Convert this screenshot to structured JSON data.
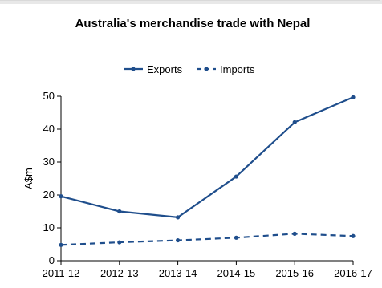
{
  "chart_data": {
    "type": "line",
    "title": "Australia's merchandise trade with Nepal",
    "ylabel": "A$m",
    "xlabel": "",
    "categories": [
      "2011-12",
      "2012-13",
      "2013-14",
      "2014-15",
      "2015-16",
      "2016-17"
    ],
    "ylim": [
      0,
      50
    ],
    "yticks": [
      0,
      10,
      20,
      30,
      40,
      50
    ],
    "grid": false,
    "legend_position": "top",
    "series": [
      {
        "name": "Exports",
        "style": "solid",
        "color": "#1f4e8c",
        "values": [
          19.6,
          15.0,
          13.2,
          25.6,
          42.1,
          49.7
        ]
      },
      {
        "name": "Imports",
        "style": "dashed",
        "color": "#1f4e8c",
        "values": [
          4.8,
          5.6,
          6.2,
          7.0,
          8.2,
          7.5
        ]
      }
    ]
  }
}
